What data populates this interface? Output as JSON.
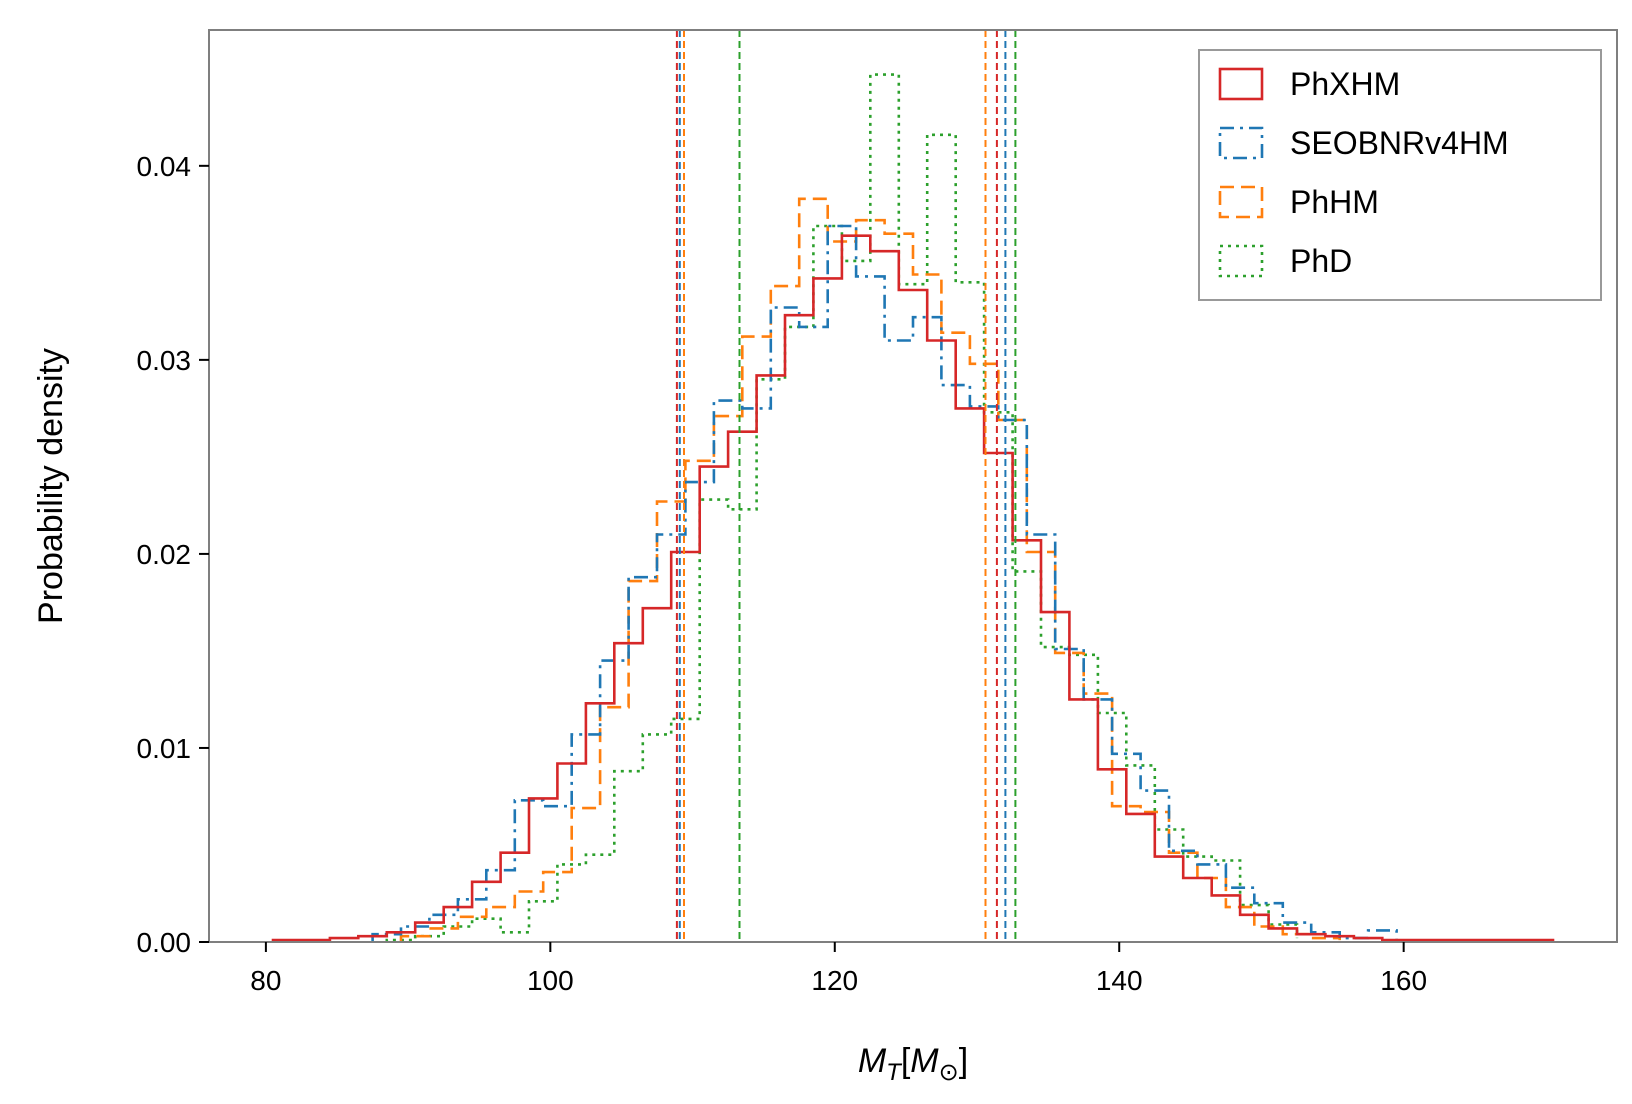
{
  "chart_data": {
    "type": "histogram",
    "xlabel_main": "M",
    "xlabel_sub": "T",
    "xlabel_unit_main": "M",
    "xlabel_unit_sub": "⊙",
    "ylabel": "Probability density",
    "xlim": [
      76,
      175
    ],
    "ylim": [
      0,
      0.047
    ],
    "xticks": [
      80,
      100,
      120,
      140,
      160
    ],
    "xtick_labels": [
      "80",
      "100",
      "120",
      "140",
      "160"
    ],
    "yticks": [
      0,
      0.01,
      0.02,
      0.03,
      0.04
    ],
    "ytick_labels": [
      "0.00",
      "0.01",
      "0.02",
      "0.03",
      "0.04"
    ],
    "grid": false,
    "legend_position": "top-right",
    "series": [
      {
        "name": "PhXHM",
        "color": "#d62728",
        "linestyle": "solid",
        "edges": [
          80.5,
          82.5,
          84.5,
          86.5,
          88.5,
          90.5,
          92.5,
          94.5,
          96.5,
          98.5,
          100.5,
          102.5,
          104.5,
          106.5,
          108.5,
          110.5,
          112.5,
          114.5,
          116.5,
          118.5,
          120.5,
          122.5,
          124.5,
          126.5,
          128.5,
          130.5,
          132.5,
          134.5,
          136.5,
          138.5,
          140.5,
          142.5,
          144.5,
          146.5,
          148.5,
          150.5,
          152.5,
          154.5,
          156.5,
          158.5,
          160.5,
          162.5,
          164.5,
          166.5,
          168.5,
          170.5
        ],
        "values": [
          0.0001,
          0.0001,
          0.0002,
          0.0003,
          0.0005,
          0.001,
          0.0018,
          0.0031,
          0.0046,
          0.0074,
          0.0092,
          0.0123,
          0.0154,
          0.0172,
          0.0201,
          0.0245,
          0.0263,
          0.0292,
          0.0323,
          0.0342,
          0.0364,
          0.0356,
          0.0336,
          0.031,
          0.0275,
          0.0252,
          0.0207,
          0.017,
          0.0125,
          0.0089,
          0.0066,
          0.0044,
          0.0033,
          0.0024,
          0.0014,
          0.0007,
          0.0004,
          0.0003,
          0.0002,
          0.0001,
          0.0001,
          0.0001,
          0.0001,
          0.0001,
          0.0001
        ]
      },
      {
        "name": "SEOBNRv4HM",
        "color": "#1f77b4",
        "linestyle": "dashdot",
        "edges": [
          87.5,
          89.5,
          91.5,
          93.5,
          95.5,
          97.5,
          99.5,
          101.5,
          103.5,
          105.5,
          107.5,
          109.5,
          111.5,
          113.5,
          115.5,
          117.5,
          119.5,
          121.5,
          123.5,
          125.5,
          127.5,
          129.5,
          131.5,
          133.5,
          135.5,
          137.5,
          139.5,
          141.5,
          143.5,
          145.5,
          147.5,
          149.5,
          151.5,
          153.5,
          155.5,
          157.5,
          159.5
        ],
        "values": [
          0.0004,
          0.0008,
          0.0014,
          0.0022,
          0.0037,
          0.0073,
          0.007,
          0.0107,
          0.0145,
          0.0188,
          0.021,
          0.0237,
          0.0279,
          0.0275,
          0.0327,
          0.0317,
          0.0369,
          0.0343,
          0.031,
          0.0322,
          0.0287,
          0.0276,
          0.0269,
          0.021,
          0.0151,
          0.0125,
          0.0097,
          0.0078,
          0.0047,
          0.004,
          0.0028,
          0.002,
          0.001,
          0.0005,
          0.0002,
          0.0006,
          0.0001
        ]
      },
      {
        "name": "PhHM",
        "color": "#ff7f0e",
        "linestyle": "dashed",
        "edges": [
          89.5,
          91.5,
          93.5,
          95.5,
          97.5,
          99.5,
          101.5,
          103.5,
          105.5,
          107.5,
          109.5,
          111.5,
          113.5,
          115.5,
          117.5,
          119.5,
          121.5,
          123.5,
          125.5,
          127.5,
          129.5,
          131.5,
          133.5,
          135.5,
          137.5,
          139.5,
          141.5,
          143.5,
          145.5,
          147.5,
          149.5,
          151.5,
          153.5,
          155.5
        ],
        "values": [
          0.0003,
          0.0007,
          0.0013,
          0.0018,
          0.0026,
          0.0036,
          0.0069,
          0.0121,
          0.0186,
          0.0227,
          0.0248,
          0.0271,
          0.0312,
          0.0338,
          0.0383,
          0.0361,
          0.0372,
          0.0365,
          0.0344,
          0.0314,
          0.0298,
          0.0269,
          0.0201,
          0.0149,
          0.0128,
          0.007,
          0.0067,
          0.0046,
          0.0033,
          0.0018,
          0.0008,
          0.0004,
          0.0002,
          0.0001
        ]
      },
      {
        "name": "PhD",
        "color": "#2ca02c",
        "linestyle": "dotted",
        "edges": [
          88.5,
          90.5,
          92.5,
          94.5,
          96.5,
          98.5,
          100.5,
          102.5,
          104.5,
          106.5,
          108.5,
          110.5,
          112.5,
          114.5,
          116.5,
          118.5,
          120.5,
          122.5,
          124.5,
          126.5,
          128.5,
          130.5,
          132.5,
          134.5,
          136.5,
          138.5,
          140.5,
          142.5,
          144.5,
          146.5,
          148.5,
          150.5,
          152.5
        ],
        "values": [
          0.0001,
          0.0003,
          0.0008,
          0.0012,
          0.0005,
          0.0021,
          0.004,
          0.0045,
          0.0088,
          0.0107,
          0.0115,
          0.0228,
          0.0223,
          0.029,
          0.0317,
          0.0369,
          0.0351,
          0.0447,
          0.0339,
          0.0416,
          0.034,
          0.0273,
          0.0191,
          0.0152,
          0.0148,
          0.0118,
          0.0091,
          0.0058,
          0.0044,
          0.0042,
          0.0019,
          0.0009,
          0.0002
        ]
      }
    ],
    "vertical_lines": [
      {
        "series": "PhXHM",
        "color": "#d62728",
        "x": [
          108.9,
          131.4
        ]
      },
      {
        "series": "SEOBNRv4HM",
        "color": "#1f77b4",
        "x": [
          109.1,
          132.0
        ]
      },
      {
        "series": "PhHM",
        "color": "#ff7f0e",
        "x": [
          109.4,
          130.6
        ]
      },
      {
        "series": "PhD",
        "color": "#2ca02c",
        "x": [
          113.3,
          132.7
        ]
      }
    ]
  }
}
